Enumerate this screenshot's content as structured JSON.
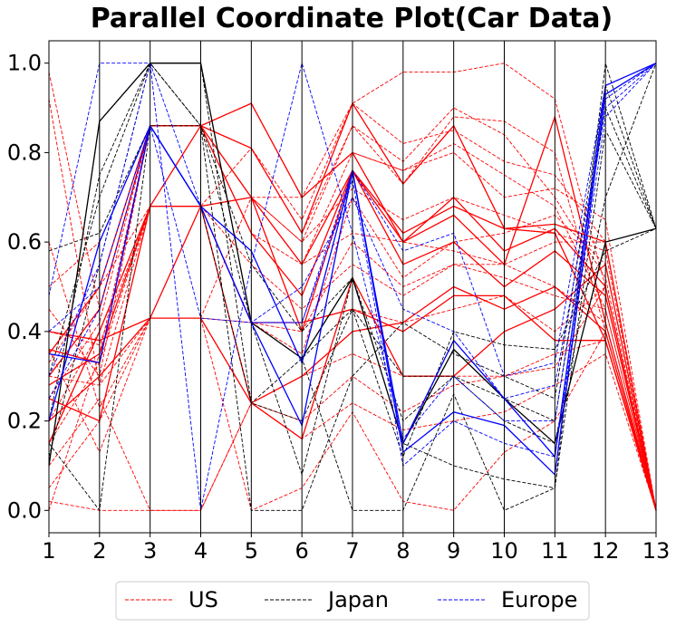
{
  "chart_data": {
    "type": "parallel-coordinates",
    "title": "Parallel Coordinate Plot(Car Data)",
    "xlabel": "",
    "ylabel": "",
    "axes": [
      "1",
      "2",
      "3",
      "4",
      "5",
      "6",
      "7",
      "8",
      "9",
      "10",
      "11",
      "12",
      "13"
    ],
    "ylim": [
      -0.05,
      1.05
    ],
    "yticks": [
      0.0,
      0.2,
      0.4,
      0.6,
      0.8,
      1.0
    ],
    "ytick_labels": [
      "0.0",
      "0.2",
      "0.4",
      "0.6",
      "0.8",
      "1.0"
    ],
    "grid": false,
    "legend": {
      "placement": "bottom-center",
      "entries": [
        "US",
        "Japan",
        "Europe"
      ]
    },
    "series_colors": {
      "US": "#ff0000",
      "Japan": "#000000",
      "Europe": "#0000ff"
    },
    "series": [
      {
        "name": "US",
        "style": "solid",
        "values": [
          0.36,
          0.33,
          0.86,
          0.86,
          0.81,
          0.62,
          0.91,
          0.73,
          0.86,
          0.63,
          0.64,
          0.6,
          0.0
        ]
      },
      {
        "name": "US",
        "style": "solid",
        "values": [
          0.3,
          0.45,
          0.86,
          0.86,
          0.91,
          0.7,
          0.8,
          0.6,
          0.7,
          0.58,
          0.63,
          0.5,
          0.0
        ]
      },
      {
        "name": "US",
        "style": "solid",
        "values": [
          0.25,
          0.2,
          0.68,
          0.68,
          0.7,
          0.55,
          0.76,
          0.62,
          0.68,
          0.63,
          0.62,
          0.38,
          0.0
        ]
      },
      {
        "name": "US",
        "style": "solid",
        "values": [
          0.15,
          0.4,
          0.68,
          0.68,
          0.42,
          0.42,
          0.45,
          0.4,
          0.48,
          0.48,
          0.38,
          0.38,
          0.0
        ]
      },
      {
        "name": "US",
        "style": "solid",
        "values": [
          0.2,
          0.3,
          0.43,
          0.43,
          0.24,
          0.16,
          0.52,
          0.3,
          0.3,
          0.4,
          0.45,
          0.55,
          0.0
        ]
      },
      {
        "name": "US",
        "style": "solid",
        "values": [
          0.35,
          0.5,
          0.86,
          0.86,
          0.7,
          0.4,
          0.76,
          0.6,
          0.66,
          0.55,
          0.88,
          0.42,
          0.0
        ]
      },
      {
        "name": "US",
        "style": "solid",
        "values": [
          0.28,
          0.35,
          0.68,
          0.86,
          0.62,
          0.48,
          0.76,
          0.55,
          0.6,
          0.5,
          0.58,
          0.48,
          0.0
        ]
      },
      {
        "name": "US",
        "style": "solid",
        "values": [
          0.4,
          0.38,
          0.43,
          0.68,
          0.24,
          0.3,
          0.4,
          0.42,
          0.5,
          0.45,
          0.5,
          0.4,
          0.0
        ]
      },
      {
        "name": "US",
        "style": "dashed",
        "values": [
          0.0,
          0.35,
          0.86,
          0.86,
          0.91,
          0.7,
          0.91,
          0.98,
          0.98,
          1.0,
          0.92,
          0.5,
          0.0
        ]
      },
      {
        "name": "US",
        "style": "dashed",
        "values": [
          0.92,
          0.28,
          0.68,
          0.68,
          0.81,
          0.62,
          0.86,
          0.73,
          0.88,
          0.87,
          0.8,
          0.4,
          0.0
        ]
      },
      {
        "name": "US",
        "style": "dashed",
        "values": [
          0.98,
          0.45,
          0.86,
          0.86,
          0.7,
          0.7,
          0.8,
          0.76,
          0.82,
          0.75,
          0.68,
          0.45,
          0.0
        ]
      },
      {
        "name": "US",
        "style": "dashed",
        "values": [
          0.36,
          0.13,
          0.43,
          0.43,
          0.42,
          0.42,
          0.45,
          0.42,
          0.45,
          0.48,
          0.4,
          0.5,
          0.0
        ]
      },
      {
        "name": "US",
        "style": "dashed",
        "values": [
          0.1,
          0.25,
          0.0,
          0.0,
          0.24,
          0.3,
          0.35,
          0.3,
          0.3,
          0.3,
          0.35,
          0.38,
          0.0
        ]
      },
      {
        "name": "US",
        "style": "dashed",
        "values": [
          0.6,
          0.23,
          0.43,
          0.43,
          0.7,
          0.55,
          0.62,
          0.6,
          0.58,
          0.55,
          0.6,
          0.6,
          0.0
        ]
      },
      {
        "name": "US",
        "style": "dashed",
        "values": [
          0.33,
          0.5,
          0.68,
          0.68,
          0.42,
          0.35,
          0.7,
          0.52,
          0.6,
          0.62,
          0.66,
          0.55,
          0.0
        ]
      },
      {
        "name": "US",
        "style": "dashed",
        "values": [
          0.45,
          0.3,
          0.86,
          0.86,
          0.62,
          0.55,
          0.8,
          0.76,
          0.8,
          0.7,
          0.72,
          0.65,
          0.0
        ]
      },
      {
        "name": "US",
        "style": "dashed",
        "values": [
          0.2,
          0.4,
          0.68,
          0.68,
          0.55,
          0.45,
          0.55,
          0.48,
          0.55,
          0.55,
          0.5,
          0.42,
          0.0
        ]
      },
      {
        "name": "US",
        "style": "dashed",
        "values": [
          0.25,
          0.42,
          0.86,
          0.86,
          0.81,
          0.65,
          0.91,
          0.82,
          0.85,
          0.78,
          0.75,
          0.6,
          0.0
        ]
      },
      {
        "name": "US",
        "style": "dashed",
        "values": [
          0.05,
          0.2,
          0.43,
          0.43,
          0.0,
          0.05,
          0.22,
          0.02,
          0.0,
          0.13,
          0.2,
          0.4,
          0.0
        ]
      },
      {
        "name": "US",
        "style": "dashed",
        "values": [
          0.4,
          0.37,
          0.68,
          0.68,
          0.7,
          0.6,
          0.72,
          0.65,
          0.7,
          0.66,
          0.62,
          0.58,
          0.0
        ]
      },
      {
        "name": "US",
        "style": "dashed",
        "values": [
          0.3,
          0.28,
          0.43,
          0.43,
          0.24,
          0.2,
          0.3,
          0.22,
          0.28,
          0.3,
          0.32,
          0.5,
          0.0
        ]
      },
      {
        "name": "US",
        "style": "dashed",
        "values": [
          0.15,
          0.33,
          0.68,
          0.68,
          0.42,
          0.4,
          0.6,
          0.5,
          0.55,
          0.52,
          0.48,
          0.45,
          0.0
        ]
      },
      {
        "name": "US",
        "style": "dashed",
        "values": [
          0.5,
          0.6,
          0.86,
          0.86,
          0.7,
          0.6,
          0.86,
          0.78,
          0.9,
          0.84,
          0.7,
          0.52,
          0.0
        ]
      },
      {
        "name": "US",
        "style": "dashed",
        "values": [
          0.02,
          0.0,
          0.0,
          0.0,
          0.24,
          0.16,
          0.24,
          0.18,
          0.2,
          0.22,
          0.28,
          0.35,
          0.0
        ]
      },
      {
        "name": "Japan",
        "style": "dashed",
        "values": [
          0.1,
          0.87,
          1.0,
          1.0,
          0.42,
          0.08,
          0.52,
          0.15,
          0.1,
          0.07,
          0.05,
          1.0,
          0.63
        ]
      },
      {
        "name": "Japan",
        "style": "dashed",
        "values": [
          0.2,
          0.75,
          1.0,
          1.0,
          0.24,
          0.34,
          0.45,
          0.3,
          0.3,
          0.25,
          0.2,
          0.9,
          0.63
        ]
      },
      {
        "name": "Japan",
        "style": "dashed",
        "values": [
          0.58,
          0.62,
          0.86,
          0.86,
          0.0,
          0.0,
          0.3,
          0.42,
          0.35,
          0.3,
          0.25,
          0.95,
          0.63
        ]
      },
      {
        "name": "Japan",
        "style": "dashed",
        "values": [
          0.12,
          0.55,
          1.0,
          0.86,
          0.42,
          0.34,
          0.0,
          0.0,
          0.26,
          0.0,
          0.05,
          0.85,
          0.63
        ]
      },
      {
        "name": "Japan",
        "style": "dashed",
        "values": [
          0.15,
          0.0,
          0.86,
          0.68,
          0.24,
          0.2,
          0.45,
          0.12,
          0.4,
          0.37,
          0.36,
          0.58,
          0.63
        ]
      },
      {
        "name": "Japan",
        "style": "dashed",
        "values": [
          0.3,
          0.7,
          1.0,
          0.86,
          0.55,
          0.4,
          0.52,
          0.2,
          0.3,
          0.2,
          0.15,
          0.7,
          1.0
        ]
      },
      {
        "name": "Japan",
        "style": "solid",
        "values": [
          0.1,
          0.87,
          1.0,
          1.0,
          0.42,
          0.34,
          0.52,
          0.15,
          0.36,
          0.25,
          0.15,
          0.6,
          0.63
        ]
      },
      {
        "name": "Europe",
        "style": "dashed",
        "values": [
          0.48,
          1.0,
          1.0,
          0.68,
          0.42,
          0.42,
          0.76,
          0.58,
          0.62,
          0.3,
          0.33,
          0.95,
          1.0
        ]
      },
      {
        "name": "Europe",
        "style": "dashed",
        "values": [
          0.4,
          0.5,
          0.86,
          0.43,
          0.42,
          0.5,
          0.7,
          0.45,
          0.4,
          0.25,
          0.28,
          0.9,
          1.0
        ]
      },
      {
        "name": "Europe",
        "style": "dashed",
        "values": [
          0.3,
          0.55,
          1.0,
          0.0,
          0.55,
          1.0,
          0.62,
          0.16,
          0.3,
          0.2,
          0.2,
          0.92,
          1.0
        ]
      },
      {
        "name": "Europe",
        "style": "dashed",
        "values": [
          0.25,
          0.45,
          0.86,
          0.68,
          0.42,
          0.42,
          0.74,
          0.1,
          0.2,
          0.15,
          0.12,
          0.88,
          1.0
        ]
      },
      {
        "name": "Europe",
        "style": "solid",
        "values": [
          0.35,
          0.33,
          0.86,
          0.68,
          0.58,
          0.33,
          0.76,
          0.15,
          0.38,
          0.25,
          0.12,
          0.95,
          1.0
        ]
      },
      {
        "name": "Europe",
        "style": "solid",
        "values": [
          0.2,
          0.6,
          0.86,
          0.68,
          0.42,
          0.19,
          0.76,
          0.13,
          0.22,
          0.19,
          0.08,
          0.93,
          1.0
        ]
      }
    ]
  }
}
